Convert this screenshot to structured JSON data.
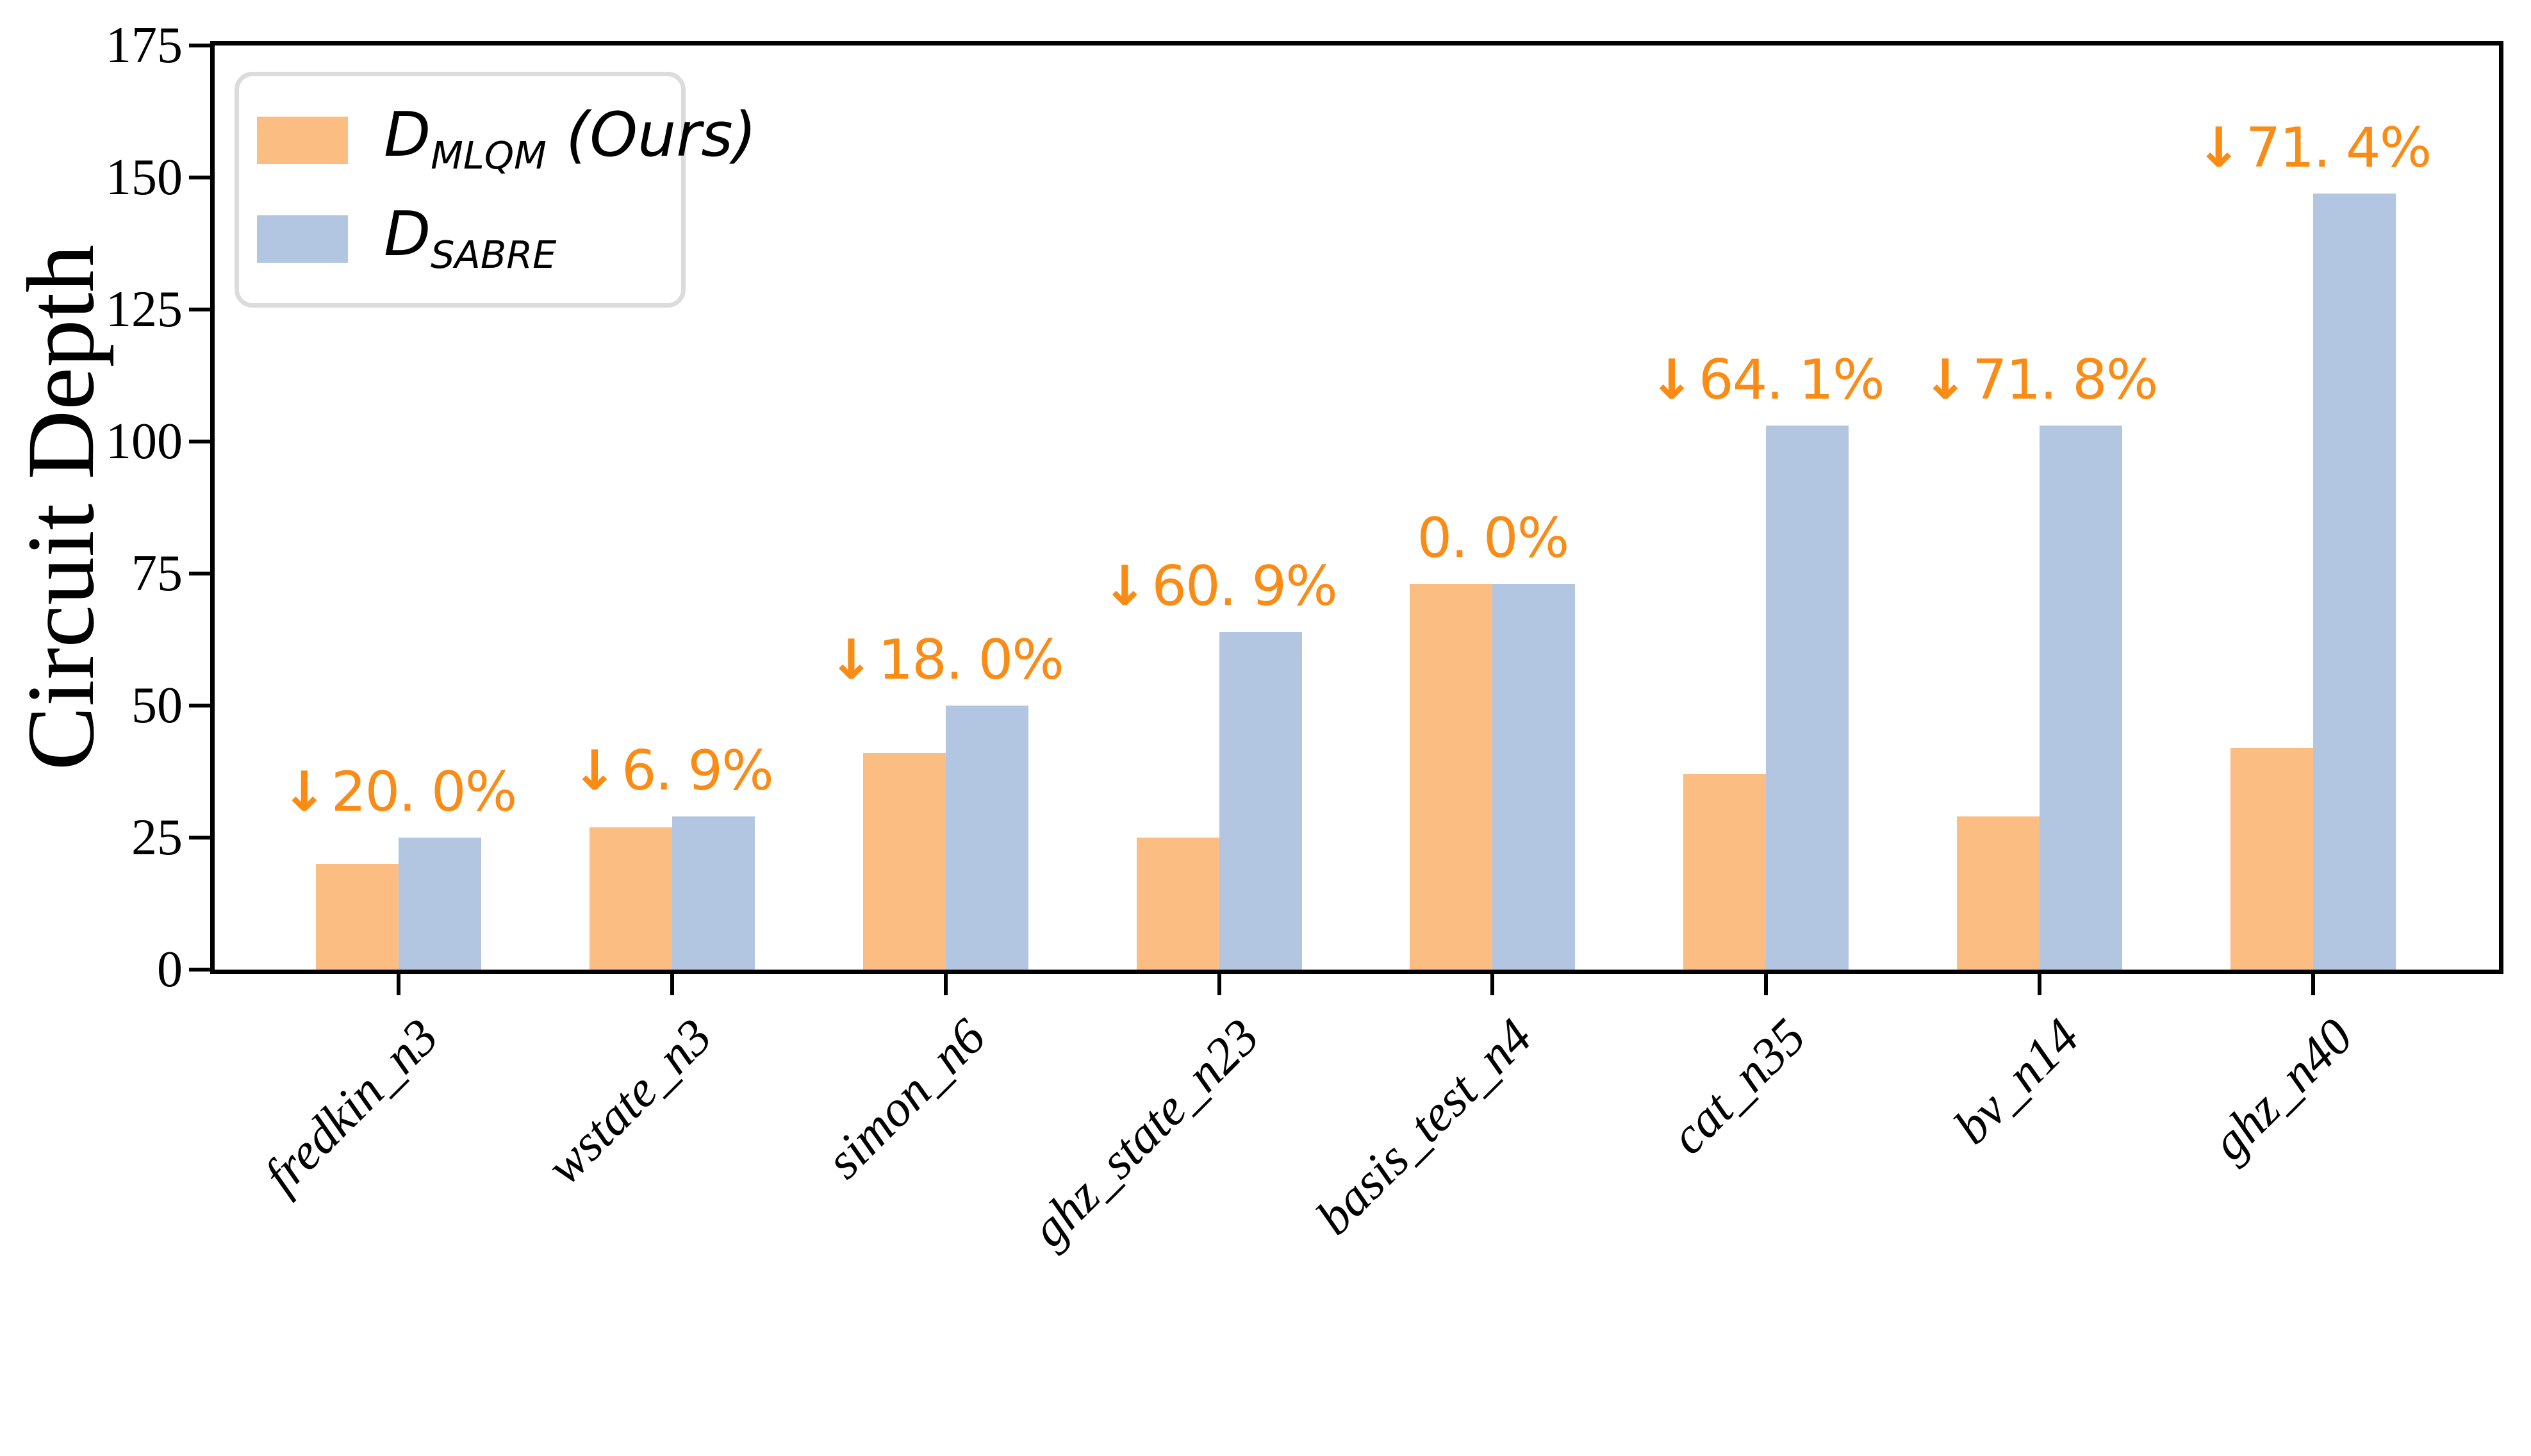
{
  "figure": {
    "ylabel": "Circuit Depth"
  },
  "legend": {
    "items": [
      {
        "symbol": "D",
        "subscript": "MLQM",
        "suffix": " (Ours)",
        "color": "#FCBD83",
        "series": "mlqm"
      },
      {
        "symbol": "D",
        "subscript": "SABRE",
        "suffix": "",
        "color": "#B2C6E2",
        "series": "sabre"
      }
    ]
  },
  "chart_data": {
    "type": "bar",
    "title": "",
    "xlabel": "",
    "ylabel": "Circuit Depth",
    "categories": [
      "fredkin_n3",
      "wstate_n3",
      "simon_n6",
      "ghz_state_n23",
      "basis_test_n4",
      "cat_n35",
      "bv_n14",
      "ghz_n40"
    ],
    "series": [
      {
        "name": "D_MLQM (Ours)",
        "color": "#FCBD83",
        "values": [
          20,
          27,
          41,
          25,
          73,
          37,
          29,
          42
        ]
      },
      {
        "name": "D_SABRE",
        "color": "#B2C6E2",
        "values": [
          25,
          29,
          50,
          64,
          73,
          103,
          103,
          147
        ]
      }
    ],
    "annotations": [
      {
        "arrow": true,
        "text": "20. 0%"
      },
      {
        "arrow": true,
        "text": "6. 9%"
      },
      {
        "arrow": true,
        "text": "18. 0%"
      },
      {
        "arrow": true,
        "text": "60. 9%"
      },
      {
        "arrow": false,
        "text": "0. 0%"
      },
      {
        "arrow": true,
        "text": "64. 1%"
      },
      {
        "arrow": true,
        "text": "71. 8%"
      },
      {
        "arrow": true,
        "text": "71. 4%"
      }
    ],
    "reductions_pct": [
      20.0,
      6.9,
      18.0,
      60.9,
      0.0,
      64.1,
      71.8,
      71.4
    ],
    "annotation_color": "#FA8C16",
    "arrow_glyph": "↓",
    "yticks": [
      0,
      25,
      50,
      75,
      100,
      125,
      150,
      175
    ],
    "ylim": [
      0,
      175
    ],
    "grid": false,
    "legend_position": "upper left"
  }
}
